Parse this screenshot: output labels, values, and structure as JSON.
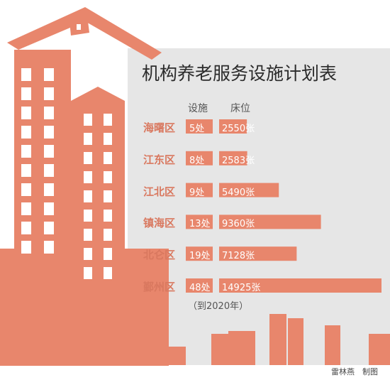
{
  "colors": {
    "accent": "#e8866c",
    "panel": "#e6e6e6",
    "district_text": "#d9785f",
    "window": "#ffffff"
  },
  "chart_data": {
    "type": "bar",
    "title": "机构养老服务设施计划表",
    "columns": [
      "设施",
      "床位"
    ],
    "categories": [
      "海曙区",
      "江东区",
      "江北区",
      "镇海区",
      "北仑区",
      "鄞州区"
    ],
    "series": [
      {
        "name": "设施",
        "values": [
          5,
          8,
          9,
          13,
          19,
          48
        ],
        "labels": [
          "5处",
          "8处",
          "9处",
          "13处",
          "19处",
          "48处"
        ]
      },
      {
        "name": "床位",
        "values": [
          2550,
          2583,
          5490,
          9360,
          7128,
          14925
        ],
        "labels": [
          "2550张",
          "2583张",
          "5490张",
          "9360张",
          "7128张",
          "14925张"
        ]
      }
    ],
    "note": "（到2020年）"
  },
  "credit": "雷林燕　制图"
}
